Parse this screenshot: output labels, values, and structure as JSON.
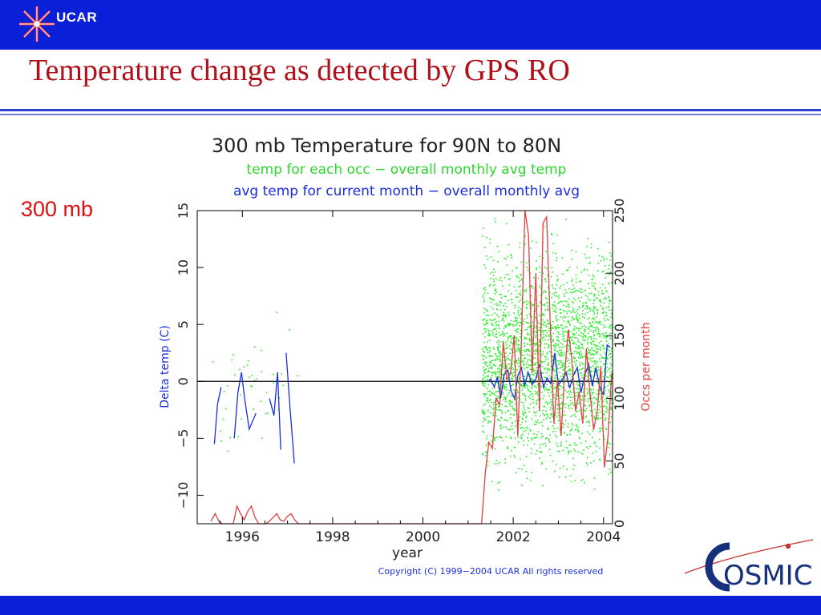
{
  "header": {
    "logo_text": "UCAR",
    "title": "Temperature change as detected by GPS RO"
  },
  "side_label": "300 mb",
  "footer_logo_text": "OSMIC",
  "colors": {
    "bar": "#0a1fd8",
    "title": "#b0101a",
    "side_label": "#e01010",
    "scatter": "#22ee22",
    "blue_series": "#1a2ee0",
    "red_series": "#e04040"
  },
  "chart_data": {
    "type": "line",
    "title": "300 mb Temperature for 90N to 80N",
    "subtitle1": "temp for each occ − overall monthly avg temp",
    "subtitle2": "avg temp for current month − overall monthly avg",
    "xlabel": "year",
    "ylabel_left": "Delta temp (C)",
    "ylabel_right": "Occs per month",
    "copyright": "Copyright (C) 1999−2004 UCAR All rights reserved",
    "xlim": [
      1995.0,
      2004.2
    ],
    "ylim_left": [
      -12.5,
      15
    ],
    "ylim_right": [
      0,
      250
    ],
    "x_ticks": [
      "1996",
      "1998",
      "2000",
      "2002",
      "2004"
    ],
    "y_ticks_left": [
      "−10",
      "−5",
      "0",
      "5",
      "10",
      "15"
    ],
    "y_ticks_right": [
      "0",
      "50",
      "100",
      "150",
      "200",
      "250"
    ],
    "zero_line": 0,
    "series": [
      {
        "axis": "left",
        "segments": [
          {
            "x": [
              1995.38,
              1995.45,
              1995.53
            ],
            "y": [
              -5.5,
              -2,
              -0.5
            ]
          },
          {
            "x": [
              1995.82,
              1995.9,
              1995.98,
              1996.05,
              1996.15,
              1996.3
            ],
            "y": [
              -5,
              -1,
              0.8,
              -1.5,
              -4.2,
              -2.8
            ]
          },
          {
            "x": [
              1996.6,
              1996.7,
              1996.78,
              1996.85
            ],
            "y": [
              -1.5,
              -3,
              0.8,
              -6
            ]
          },
          {
            "x": [
              1996.97,
              1997.05,
              1997.15
            ],
            "y": [
              2.5,
              -2,
              -7.2
            ]
          },
          {
            "x": [
              2001.45,
              2001.5,
              2001.58,
              2001.65,
              2001.72,
              2001.8,
              2001.88,
              2001.95,
              2002.03,
              2002.1,
              2002.18,
              2002.25,
              2002.33,
              2002.42,
              2002.5,
              2002.58,
              2002.67,
              2002.75,
              2002.83,
              2002.92,
              2003.0,
              2003.08,
              2003.17,
              2003.25,
              2003.33,
              2003.42,
              2003.5,
              2003.58,
              2003.67,
              2003.75,
              2003.83,
              2003.92,
              2004.0,
              2004.08,
              2004.15
            ],
            "y": [
              0,
              0.2,
              -0.5,
              0.4,
              -1.5,
              0.6,
              1,
              -0.8,
              -1.5,
              0.5,
              1.2,
              -0.4,
              0.8,
              -0.3,
              0.2,
              1.5,
              -0.5,
              0.3,
              -0.2,
              2.5,
              -0.3,
              0.1,
              0.8,
              -0.6,
              0.5,
              1.2,
              -1,
              0.5,
              1.5,
              -0.4,
              1.2,
              -0.5,
              -1.2,
              3.2,
              3
            ]
          }
        ]
      },
      {
        "axis": "right",
        "segments": [
          {
            "x": [
              1995.3,
              1995.4,
              1995.48,
              1995.56,
              1995.64,
              1995.72,
              1995.8,
              1995.88,
              1995.96,
              1996.04,
              1996.12,
              1996.2,
              1996.28,
              1996.36,
              1996.44,
              1996.52,
              1996.6,
              1996.68,
              1996.76,
              1996.84,
              1996.92,
              1997.0,
              1997.08,
              1997.16,
              1997.24
            ],
            "y": [
              2,
              8,
              2,
              0,
              0,
              0,
              0,
              14,
              8,
              3,
              10,
              14,
              5,
              0,
              0,
              0,
              2,
              5,
              8,
              3,
              2,
              6,
              8,
              3,
              0
            ]
          },
          {
            "x": [
              1997.24,
              2001.3
            ],
            "y": [
              0,
              0
            ]
          },
          {
            "x": [
              2001.3,
              2001.38,
              2001.46,
              2001.54,
              2001.62,
              2001.7,
              2001.78,
              2001.86,
              2001.94,
              2002.02,
              2002.1,
              2002.18,
              2002.26,
              2002.34,
              2002.42,
              2002.5,
              2002.58,
              2002.66,
              2002.74,
              2002.82,
              2002.9,
              2002.98,
              2003.06,
              2003.14,
              2003.22,
              2003.3,
              2003.38,
              2003.46,
              2003.54,
              2003.62,
              2003.7,
              2003.78,
              2003.86,
              2003.94,
              2004.02,
              2004.1,
              2004.18
            ],
            "y": [
              0,
              40,
              65,
              60,
              100,
              95,
              145,
              115,
              120,
              150,
              70,
              145,
              250,
              230,
              120,
              200,
              90,
              240,
              245,
              160,
              80,
              115,
              70,
              120,
              155,
              130,
              90,
              105,
              80,
              140,
              105,
              75,
              90,
              125,
              45,
              70,
              120
            ]
          }
        ]
      }
    ],
    "scatter": {
      "axis": "left",
      "description": "per-occultation temperature deltas",
      "clusters": [
        {
          "x_range": [
            1995.3,
            1997.25
          ],
          "y_range": [
            -9,
            7
          ],
          "n": 45
        },
        {
          "x_range": [
            2001.3,
            2004.2
          ],
          "y_range": [
            -11,
            15
          ],
          "n": 2600
        }
      ]
    }
  }
}
